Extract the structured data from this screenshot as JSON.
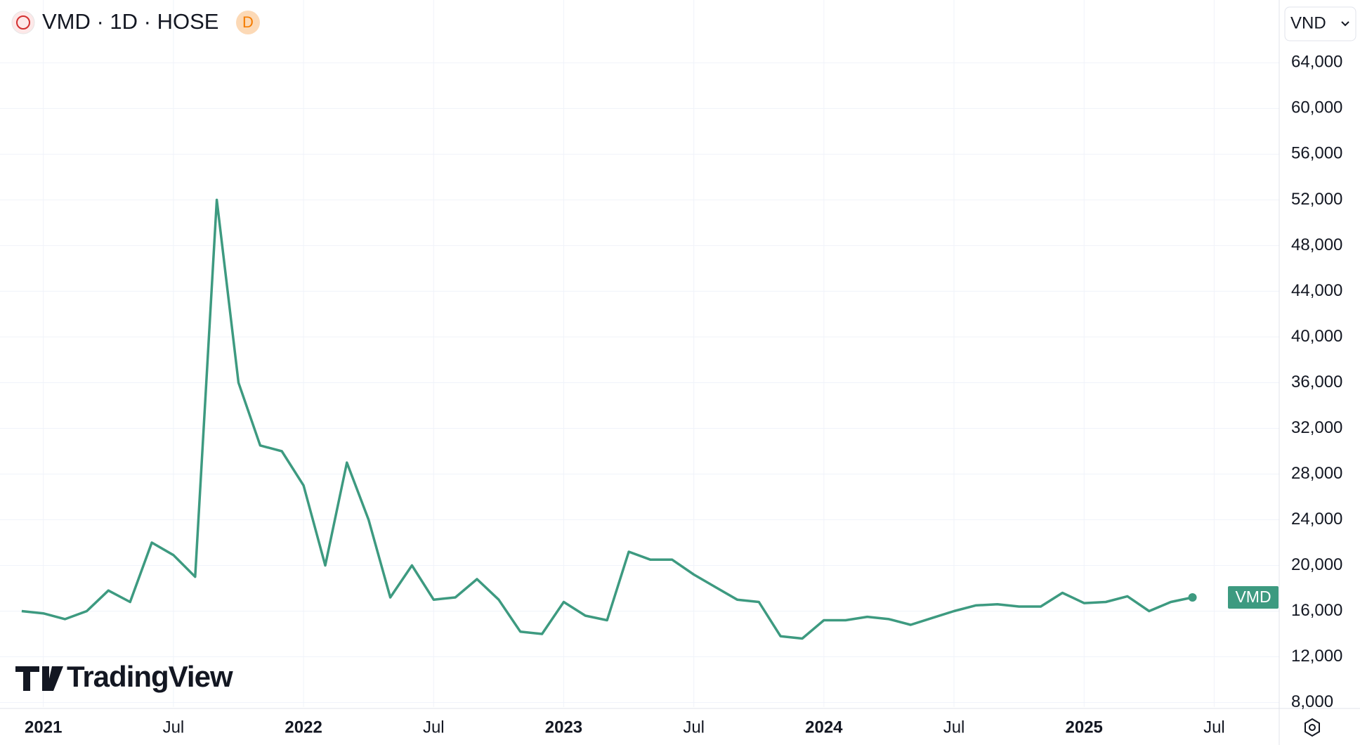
{
  "chart_data": {
    "type": "line",
    "title": "VMD · 1D · HOSE",
    "interval_badge": "D",
    "currency": "VND",
    "watermark": "TradingView",
    "x": [
      "2020-12",
      "2021-01",
      "2021-02",
      "2021-03",
      "2021-04",
      "2021-05",
      "2021-06",
      "2021-07",
      "2021-08",
      "2021-09",
      "2021-10",
      "2021-11",
      "2021-12",
      "2022-01",
      "2022-02",
      "2022-03",
      "2022-04",
      "2022-05",
      "2022-06",
      "2022-07",
      "2022-08",
      "2022-09",
      "2022-10",
      "2022-11",
      "2022-12",
      "2023-01",
      "2023-02",
      "2023-03",
      "2023-04",
      "2023-05",
      "2023-06",
      "2023-07",
      "2023-08",
      "2023-09",
      "2023-10",
      "2023-11",
      "2023-12",
      "2024-01",
      "2024-02",
      "2024-03",
      "2024-04",
      "2024-05",
      "2024-06",
      "2024-07",
      "2024-08",
      "2024-09",
      "2024-10",
      "2024-11",
      "2024-12",
      "2025-01",
      "2025-02",
      "2025-03",
      "2025-04",
      "2025-05",
      "2025-06"
    ],
    "series": [
      {
        "name": "VMD",
        "color": "#3d9a80",
        "values": [
          16000,
          15800,
          15300,
          16000,
          17800,
          16800,
          22000,
          20900,
          19000,
          52000,
          36000,
          30500,
          30000,
          27000,
          20000,
          29000,
          24000,
          17200,
          20000,
          17000,
          17200,
          18800,
          17000,
          14200,
          14000,
          16800,
          15600,
          15200,
          21200,
          20500,
          20500,
          19200,
          18100,
          17000,
          16800,
          13800,
          13600,
          15200,
          15200,
          15500,
          15300,
          14800,
          15400,
          16000,
          16500,
          16600,
          16400,
          16400,
          17600,
          16700,
          16800,
          17300,
          16000,
          16800,
          17200
        ]
      }
    ],
    "xlim": [
      "2020-11",
      "2025-10"
    ],
    "xticks": [
      {
        "value": "2021-01",
        "label": "2021"
      },
      {
        "value": "2021-07",
        "label": "Jul"
      },
      {
        "value": "2022-01",
        "label": "2022"
      },
      {
        "value": "2022-07",
        "label": "Jul"
      },
      {
        "value": "2023-01",
        "label": "2023"
      },
      {
        "value": "2023-07",
        "label": "Jul"
      },
      {
        "value": "2024-01",
        "label": "2024"
      },
      {
        "value": "2024-07",
        "label": "Jul"
      },
      {
        "value": "2025-01",
        "label": "2025"
      },
      {
        "value": "2025-07",
        "label": "Jul"
      }
    ],
    "ylim": [
      7600,
      69500
    ],
    "yticks": [
      {
        "value": 8000,
        "label": "8,000"
      },
      {
        "value": 12000,
        "label": "12,000"
      },
      {
        "value": 16000,
        "label": "16,000"
      },
      {
        "value": 20000,
        "label": "20,000"
      },
      {
        "value": 24000,
        "label": "24,000"
      },
      {
        "value": 28000,
        "label": "28,000"
      },
      {
        "value": 32000,
        "label": "32,000"
      },
      {
        "value": 36000,
        "label": "36,000"
      },
      {
        "value": 40000,
        "label": "40,000"
      },
      {
        "value": 44000,
        "label": "44,000"
      },
      {
        "value": 48000,
        "label": "48,000"
      },
      {
        "value": 52000,
        "label": "52,000"
      },
      {
        "value": 56000,
        "label": "56,000"
      },
      {
        "value": 60000,
        "label": "60,000"
      },
      {
        "value": 64000,
        "label": "64,000"
      }
    ],
    "grid": true
  }
}
